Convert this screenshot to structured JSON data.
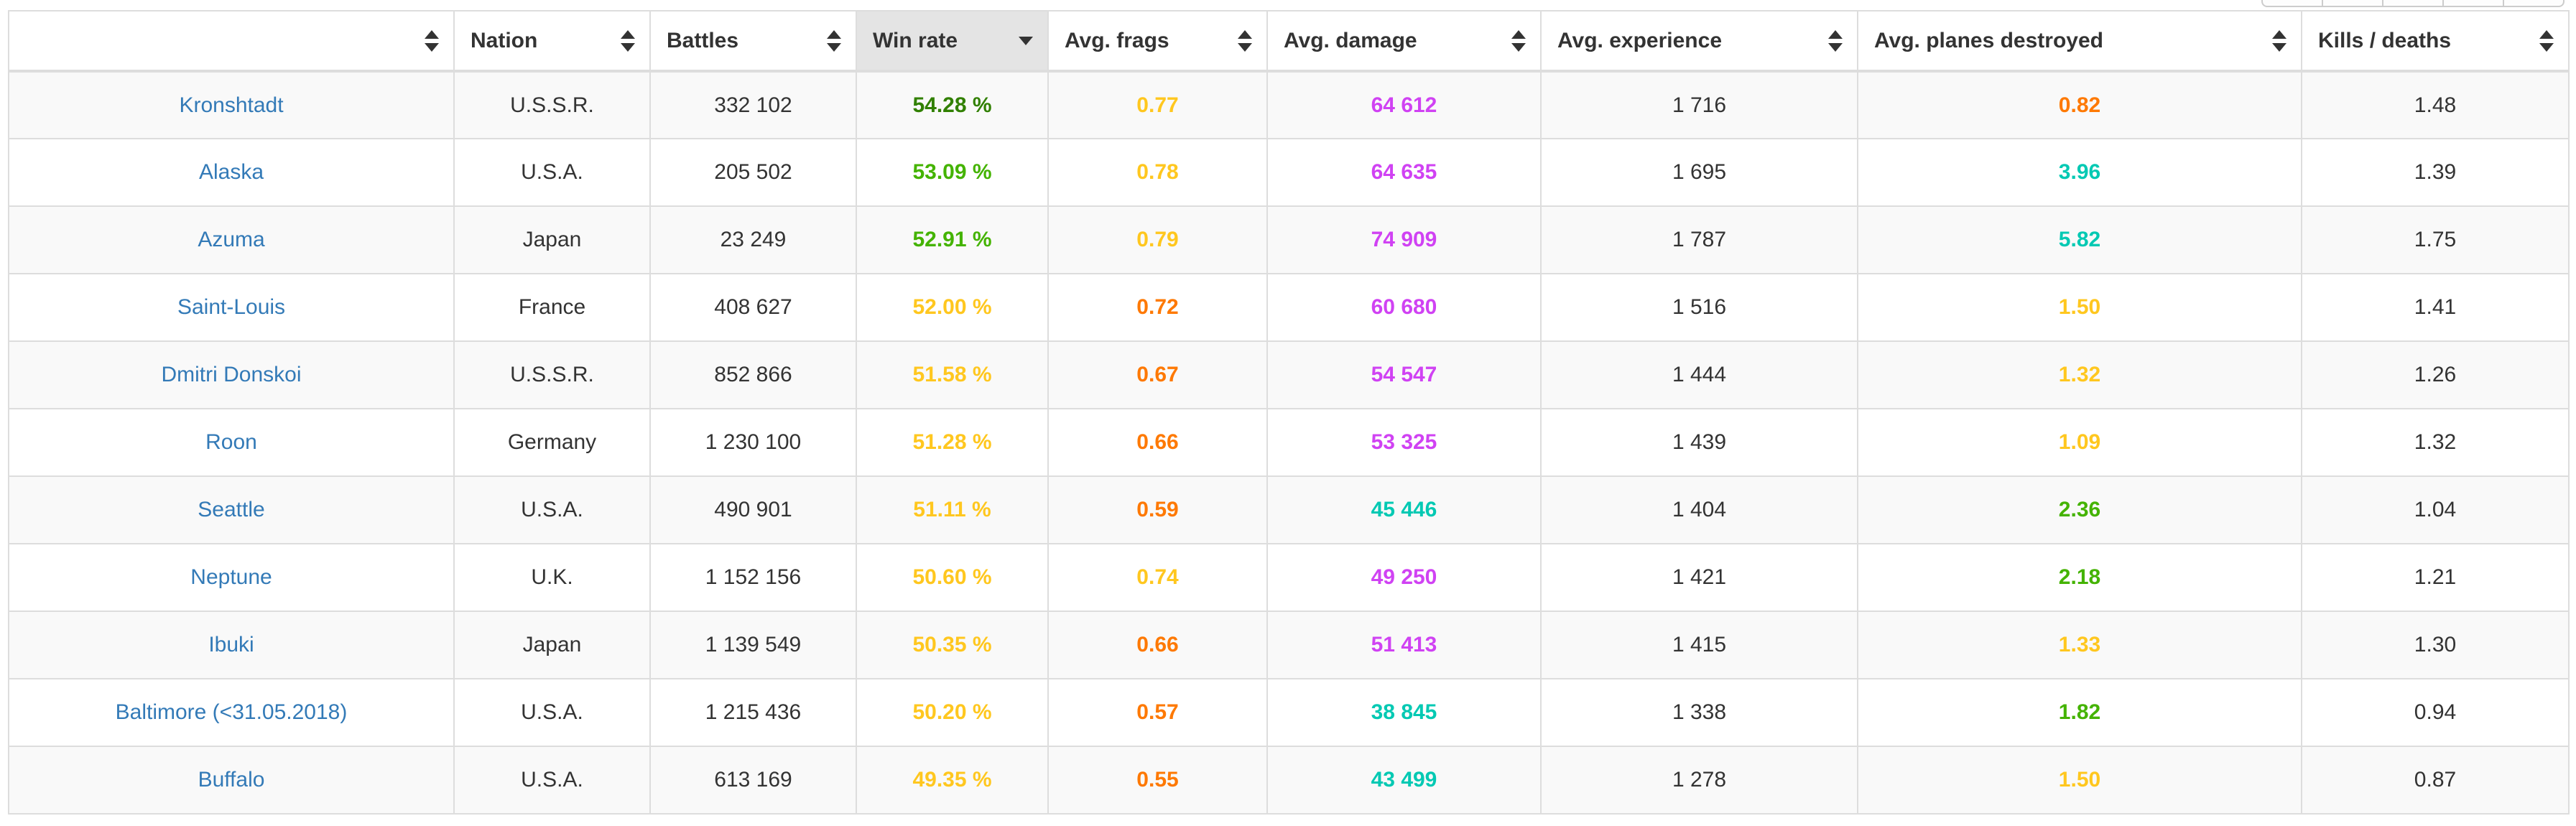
{
  "window": {
    "background": "#ffffff"
  },
  "partial_toolbar": {
    "segments": 5,
    "note_visible_only_as_sliver": true
  },
  "colors": {
    "link": "#337ab7",
    "text": "#333333",
    "border": "#dddddd",
    "row_stripe": "#f9f9f9",
    "sorted_header_bg": "#e4e4e4",
    "very_good_green": "#318000",
    "good_green": "#44B300",
    "average_yellow": "#FFC71F",
    "below_average_orange": "#FE7903",
    "unicum_magenta": "#D042F3",
    "great_teal": "#02C9B3"
  },
  "table": {
    "sorted_column": "win_rate",
    "sort_direction": "desc",
    "columns": [
      {
        "key": "ship",
        "label": "",
        "type": "link",
        "sorted": null
      },
      {
        "key": "nation",
        "label": "Nation",
        "type": "plain",
        "sorted": null
      },
      {
        "key": "battles",
        "label": "Battles",
        "type": "plain",
        "sorted": null
      },
      {
        "key": "win_rate",
        "label": "Win rate",
        "type": "metric",
        "sorted": "desc"
      },
      {
        "key": "avg_frags",
        "label": "Avg. frags",
        "type": "metric",
        "sorted": null
      },
      {
        "key": "avg_damage",
        "label": "Avg. damage",
        "type": "metric",
        "sorted": null
      },
      {
        "key": "avg_experience",
        "label": "Avg. experience",
        "type": "plain",
        "sorted": null
      },
      {
        "key": "avg_planes_destroyed",
        "label": "Avg. planes destroyed",
        "type": "metric",
        "sorted": null
      },
      {
        "key": "kills_deaths",
        "label": "Kills / deaths",
        "type": "plain",
        "sorted": null
      }
    ],
    "rows": [
      {
        "ship": "Kronshtadt",
        "nation": "U.S.S.R.",
        "battles": "332 102",
        "win_rate": {
          "text": "54.28 %",
          "color": "#318000"
        },
        "avg_frags": {
          "text": "0.77",
          "color": "#FFC71F"
        },
        "avg_damage": {
          "text": "64 612",
          "color": "#D042F3"
        },
        "avg_experience": "1 716",
        "avg_planes_destroyed": {
          "text": "0.82",
          "color": "#FE7903"
        },
        "kills_deaths": "1.48"
      },
      {
        "ship": "Alaska",
        "nation": "U.S.A.",
        "battles": "205 502",
        "win_rate": {
          "text": "53.09 %",
          "color": "#44B300"
        },
        "avg_frags": {
          "text": "0.78",
          "color": "#FFC71F"
        },
        "avg_damage": {
          "text": "64 635",
          "color": "#D042F3"
        },
        "avg_experience": "1 695",
        "avg_planes_destroyed": {
          "text": "3.96",
          "color": "#02C9B3"
        },
        "kills_deaths": "1.39"
      },
      {
        "ship": "Azuma",
        "nation": "Japan",
        "battles": "23 249",
        "win_rate": {
          "text": "52.91 %",
          "color": "#44B300"
        },
        "avg_frags": {
          "text": "0.79",
          "color": "#FFC71F"
        },
        "avg_damage": {
          "text": "74 909",
          "color": "#D042F3"
        },
        "avg_experience": "1 787",
        "avg_planes_destroyed": {
          "text": "5.82",
          "color": "#02C9B3"
        },
        "kills_deaths": "1.75"
      },
      {
        "ship": "Saint-Louis",
        "nation": "France",
        "battles": "408 627",
        "win_rate": {
          "text": "52.00 %",
          "color": "#FFC71F"
        },
        "avg_frags": {
          "text": "0.72",
          "color": "#FE7903"
        },
        "avg_damage": {
          "text": "60 680",
          "color": "#D042F3"
        },
        "avg_experience": "1 516",
        "avg_planes_destroyed": {
          "text": "1.50",
          "color": "#FFC71F"
        },
        "kills_deaths": "1.41"
      },
      {
        "ship": "Dmitri Donskoi",
        "nation": "U.S.S.R.",
        "battles": "852 866",
        "win_rate": {
          "text": "51.58 %",
          "color": "#FFC71F"
        },
        "avg_frags": {
          "text": "0.67",
          "color": "#FE7903"
        },
        "avg_damage": {
          "text": "54 547",
          "color": "#D042F3"
        },
        "avg_experience": "1 444",
        "avg_planes_destroyed": {
          "text": "1.32",
          "color": "#FFC71F"
        },
        "kills_deaths": "1.26"
      },
      {
        "ship": "Roon",
        "nation": "Germany",
        "battles": "1 230 100",
        "win_rate": {
          "text": "51.28 %",
          "color": "#FFC71F"
        },
        "avg_frags": {
          "text": "0.66",
          "color": "#FE7903"
        },
        "avg_damage": {
          "text": "53 325",
          "color": "#D042F3"
        },
        "avg_experience": "1 439",
        "avg_planes_destroyed": {
          "text": "1.09",
          "color": "#FFC71F"
        },
        "kills_deaths": "1.32"
      },
      {
        "ship": "Seattle",
        "nation": "U.S.A.",
        "battles": "490 901",
        "win_rate": {
          "text": "51.11 %",
          "color": "#FFC71F"
        },
        "avg_frags": {
          "text": "0.59",
          "color": "#FE7903"
        },
        "avg_damage": {
          "text": "45 446",
          "color": "#02C9B3"
        },
        "avg_experience": "1 404",
        "avg_planes_destroyed": {
          "text": "2.36",
          "color": "#44B300"
        },
        "kills_deaths": "1.04"
      },
      {
        "ship": "Neptune",
        "nation": "U.K.",
        "battles": "1 152 156",
        "win_rate": {
          "text": "50.60 %",
          "color": "#FFC71F"
        },
        "avg_frags": {
          "text": "0.74",
          "color": "#FFC71F"
        },
        "avg_damage": {
          "text": "49 250",
          "color": "#D042F3"
        },
        "avg_experience": "1 421",
        "avg_planes_destroyed": {
          "text": "2.18",
          "color": "#44B300"
        },
        "kills_deaths": "1.21"
      },
      {
        "ship": "Ibuki",
        "nation": "Japan",
        "battles": "1 139 549",
        "win_rate": {
          "text": "50.35 %",
          "color": "#FFC71F"
        },
        "avg_frags": {
          "text": "0.66",
          "color": "#FE7903"
        },
        "avg_damage": {
          "text": "51 413",
          "color": "#D042F3"
        },
        "avg_experience": "1 415",
        "avg_planes_destroyed": {
          "text": "1.33",
          "color": "#FFC71F"
        },
        "kills_deaths": "1.30"
      },
      {
        "ship": "Baltimore (<31.05.2018)",
        "nation": "U.S.A.",
        "battles": "1 215 436",
        "win_rate": {
          "text": "50.20 %",
          "color": "#FFC71F"
        },
        "avg_frags": {
          "text": "0.57",
          "color": "#FE7903"
        },
        "avg_damage": {
          "text": "38 845",
          "color": "#02C9B3"
        },
        "avg_experience": "1 338",
        "avg_planes_destroyed": {
          "text": "1.82",
          "color": "#44B300"
        },
        "kills_deaths": "0.94"
      },
      {
        "ship": "Buffalo",
        "nation": "U.S.A.",
        "battles": "613 169",
        "win_rate": {
          "text": "49.35 %",
          "color": "#FFC71F"
        },
        "avg_frags": {
          "text": "0.55",
          "color": "#FE7903"
        },
        "avg_damage": {
          "text": "43 499",
          "color": "#02C9B3"
        },
        "avg_experience": "1 278",
        "avg_planes_destroyed": {
          "text": "1.50",
          "color": "#FFC71F"
        },
        "kills_deaths": "0.87"
      }
    ]
  }
}
